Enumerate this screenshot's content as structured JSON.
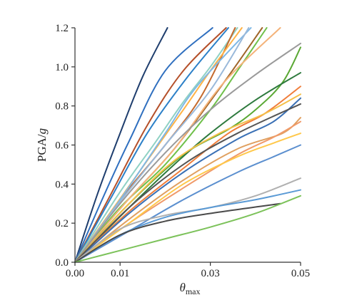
{
  "chart_data": {
    "type": "line",
    "ylabel": {
      "main": "PGA/",
      "italic": "g"
    },
    "xlabel": {
      "main": "θ",
      "sub": "max"
    },
    "xlim": [
      0,
      0.05
    ],
    "ylim": [
      0,
      1.2
    ],
    "x_ticks": [
      0,
      0.01,
      0.03,
      0.05
    ],
    "x_tick_labels": [
      "0.00",
      "0.01",
      "0.03",
      "0.05"
    ],
    "y_ticks": [
      0,
      0.2,
      0.4,
      0.6,
      0.8,
      1.0,
      1.2
    ],
    "y_tick_labels": [
      "0.0",
      "0.2",
      "0.4",
      "0.6",
      "0.8",
      "1.0",
      "1.2"
    ],
    "grid": false,
    "legend": "none",
    "series": [
      {
        "color": "#1f3e6e",
        "points": [
          [
            0,
            0
          ],
          [
            0.005,
            0.35
          ],
          [
            0.01,
            0.66
          ],
          [
            0.015,
            0.95
          ],
          [
            0.0205,
            1.2
          ]
        ]
      },
      {
        "color": "#2f6fbf",
        "points": [
          [
            0,
            0
          ],
          [
            0.006,
            0.32
          ],
          [
            0.012,
            0.62
          ],
          [
            0.02,
            0.98
          ],
          [
            0.0305,
            1.2
          ]
        ]
      },
      {
        "color": "#b5502a",
        "points": [
          [
            0,
            0
          ],
          [
            0.008,
            0.35
          ],
          [
            0.016,
            0.7
          ],
          [
            0.024,
            0.98
          ],
          [
            0.0335,
            1.2
          ]
        ]
      },
      {
        "color": "#2c80c8",
        "points": [
          [
            0,
            0
          ],
          [
            0.008,
            0.33
          ],
          [
            0.016,
            0.66
          ],
          [
            0.025,
            0.95
          ],
          [
            0.034,
            1.2
          ]
        ]
      },
      {
        "color": "#8fd1c4",
        "points": [
          [
            0,
            0
          ],
          [
            0.01,
            0.36
          ],
          [
            0.018,
            0.62
          ],
          [
            0.024,
            0.82
          ],
          [
            0.03,
            1.0
          ],
          [
            0.036,
            1.2
          ]
        ]
      },
      {
        "color": "#c46a2e",
        "points": [
          [
            0,
            0
          ],
          [
            0.01,
            0.32
          ],
          [
            0.02,
            0.6
          ],
          [
            0.028,
            0.85
          ],
          [
            0.0355,
            1.2
          ]
        ]
      },
      {
        "color": "#ffb347",
        "points": [
          [
            0,
            0
          ],
          [
            0.008,
            0.26
          ],
          [
            0.016,
            0.52
          ],
          [
            0.024,
            0.78
          ],
          [
            0.03,
            0.98
          ],
          [
            0.037,
            1.2
          ]
        ]
      },
      {
        "color": "#7fb8e5",
        "points": [
          [
            0,
            0
          ],
          [
            0.01,
            0.32
          ],
          [
            0.02,
            0.66
          ],
          [
            0.027,
            0.9
          ],
          [
            0.039,
            1.2
          ]
        ]
      },
      {
        "color": "#9ab9da",
        "points": [
          [
            0,
            0
          ],
          [
            0.01,
            0.31
          ],
          [
            0.02,
            0.6
          ],
          [
            0.03,
            0.88
          ],
          [
            0.0385,
            1.2
          ]
        ]
      },
      {
        "color": "#a0662a",
        "points": [
          [
            0,
            0
          ],
          [
            0.011,
            0.3
          ],
          [
            0.022,
            0.58
          ],
          [
            0.033,
            0.92
          ],
          [
            0.0415,
            1.2
          ]
        ]
      },
      {
        "color": "#6fc04a",
        "points": [
          [
            0,
            0
          ],
          [
            0.01,
            0.28
          ],
          [
            0.02,
            0.5
          ],
          [
            0.03,
            0.78
          ],
          [
            0.036,
            0.98
          ],
          [
            0.0425,
            1.2
          ]
        ]
      },
      {
        "color": "#f4b37a",
        "points": [
          [
            0,
            0
          ],
          [
            0.011,
            0.3
          ],
          [
            0.022,
            0.58
          ],
          [
            0.033,
            0.92
          ],
          [
            0.0455,
            1.2
          ]
        ]
      },
      {
        "color": "#9a9a9a",
        "points": [
          [
            0,
            0
          ],
          [
            0.01,
            0.3
          ],
          [
            0.02,
            0.56
          ],
          [
            0.03,
            0.78
          ],
          [
            0.04,
            0.96
          ],
          [
            0.05,
            1.12
          ]
        ]
      },
      {
        "color": "#5aa834",
        "points": [
          [
            0,
            0
          ],
          [
            0.012,
            0.3
          ],
          [
            0.024,
            0.55
          ],
          [
            0.034,
            0.68
          ],
          [
            0.04,
            0.78
          ],
          [
            0.046,
            0.92
          ],
          [
            0.05,
            1.1
          ]
        ]
      },
      {
        "color": "#2e7a3e",
        "points": [
          [
            0,
            0
          ],
          [
            0.012,
            0.28
          ],
          [
            0.022,
            0.5
          ],
          [
            0.03,
            0.66
          ],
          [
            0.04,
            0.83
          ],
          [
            0.05,
            0.97
          ]
        ]
      },
      {
        "color": "#f07d3a",
        "points": [
          [
            0,
            0
          ],
          [
            0.012,
            0.26
          ],
          [
            0.024,
            0.48
          ],
          [
            0.034,
            0.66
          ],
          [
            0.042,
            0.76
          ],
          [
            0.05,
            0.9
          ]
        ]
      },
      {
        "color": "#f5c04a",
        "points": [
          [
            0,
            0
          ],
          [
            0.012,
            0.3
          ],
          [
            0.022,
            0.52
          ],
          [
            0.032,
            0.66
          ],
          [
            0.042,
            0.76
          ],
          [
            0.05,
            0.86
          ]
        ]
      },
      {
        "color": "#3a70b5",
        "points": [
          [
            0,
            0
          ],
          [
            0.012,
            0.25
          ],
          [
            0.024,
            0.46
          ],
          [
            0.036,
            0.63
          ],
          [
            0.044,
            0.72
          ],
          [
            0.05,
            0.84
          ]
        ]
      },
      {
        "color": "#555555",
        "points": [
          [
            0,
            0
          ],
          [
            0.012,
            0.28
          ],
          [
            0.024,
            0.5
          ],
          [
            0.036,
            0.66
          ],
          [
            0.05,
            0.81
          ]
        ]
      },
      {
        "color": "#e0a060",
        "points": [
          [
            0,
            0
          ],
          [
            0.012,
            0.22
          ],
          [
            0.024,
            0.42
          ],
          [
            0.036,
            0.58
          ],
          [
            0.046,
            0.66
          ],
          [
            0.05,
            0.74
          ]
        ]
      },
      {
        "color": "#f09a6a",
        "points": [
          [
            0,
            0
          ],
          [
            0.012,
            0.2
          ],
          [
            0.024,
            0.38
          ],
          [
            0.036,
            0.55
          ],
          [
            0.044,
            0.64
          ],
          [
            0.05,
            0.72
          ]
        ]
      },
      {
        "color": "#ffc84a",
        "points": [
          [
            0,
            0
          ],
          [
            0.012,
            0.2
          ],
          [
            0.024,
            0.4
          ],
          [
            0.036,
            0.54
          ],
          [
            0.044,
            0.61
          ],
          [
            0.05,
            0.66
          ]
        ]
      },
      {
        "color": "#5b8fcf",
        "points": [
          [
            0,
            0
          ],
          [
            0.012,
            0.16
          ],
          [
            0.024,
            0.32
          ],
          [
            0.036,
            0.46
          ],
          [
            0.044,
            0.54
          ],
          [
            0.05,
            0.6
          ]
        ]
      },
      {
        "color": "#b0b0b0",
        "points": [
          [
            0,
            0
          ],
          [
            0.01,
            0.17
          ],
          [
            0.02,
            0.24
          ],
          [
            0.03,
            0.28
          ],
          [
            0.04,
            0.34
          ],
          [
            0.05,
            0.43
          ]
        ]
      },
      {
        "color": "#5a9ad5",
        "points": [
          [
            0,
            0
          ],
          [
            0.01,
            0.14
          ],
          [
            0.02,
            0.23
          ],
          [
            0.03,
            0.28
          ],
          [
            0.04,
            0.32
          ],
          [
            0.05,
            0.37
          ]
        ]
      },
      {
        "color": "#4a4a4a",
        "points": [
          [
            0,
            0
          ],
          [
            0.01,
            0.14
          ],
          [
            0.02,
            0.21
          ],
          [
            0.03,
            0.25
          ],
          [
            0.0455,
            0.3
          ]
        ]
      },
      {
        "color": "#7cc25a",
        "points": [
          [
            0,
            0
          ],
          [
            0.01,
            0.06
          ],
          [
            0.02,
            0.12
          ],
          [
            0.03,
            0.18
          ],
          [
            0.04,
            0.25
          ],
          [
            0.05,
            0.34
          ]
        ]
      }
    ]
  }
}
